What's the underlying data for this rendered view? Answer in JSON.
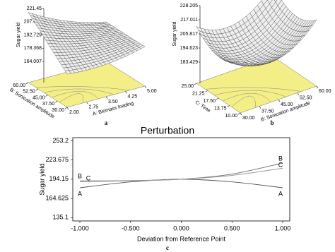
{
  "chart_data": [
    {
      "type": "surface",
      "panel": "a",
      "zlabel": "Sugar yield",
      "xlabel": "A: Biomass loading",
      "ylabel": "B: Sonication amplitude",
      "xlim": [
        2,
        5
      ],
      "xticks": [
        {
          "value": 2,
          "label": "2.00"
        },
        2.75,
        {
          "value": 3.5,
          "label": "3.50"
        },
        4.25,
        {
          "value": 5,
          "label": "5.00"
        }
      ],
      "ylim": [
        30,
        60
      ],
      "yticks": [
        {
          "value": 30,
          "label": "30.00"
        },
        {
          "value": 37.5,
          "label": "37.50"
        },
        {
          "value": 45,
          "label": "45.00"
        },
        {
          "value": 52.5,
          "label": "52.50"
        },
        {
          "value": 60,
          "label": "60.00"
        }
      ],
      "zlim": [
        164.007,
        221.45
      ],
      "zticks": [
        164.007,
        178.368,
        192.729,
        207.089,
        221.45
      ]
    },
    {
      "type": "surface",
      "panel": "b",
      "zlabel": "Sugar yield",
      "xlabel": "B: Sonication amplitude",
      "ylabel": "C: Time",
      "xlim": [
        30,
        60
      ],
      "xticks": [
        {
          "value": 30,
          "label": "30.00"
        },
        {
          "value": 37.5,
          "label": "37.50"
        },
        {
          "value": 45,
          "label": "45.00"
        },
        {
          "value": 52.5,
          "label": "52.50"
        },
        {
          "value": 60,
          "label": "60.00"
        }
      ],
      "ylim": [
        10,
        25
      ],
      "yticks": [
        {
          "value": 10,
          "label": "10.00"
        },
        13.75,
        {
          "value": 17.5,
          "label": "17.50"
        },
        21.25,
        {
          "value": 25,
          "label": "25.00"
        }
      ],
      "zlim": [
        183.429,
        228.205
      ],
      "zticks": [
        183.429,
        194.623,
        205.817,
        217.011,
        228.205
      ]
    },
    {
      "type": "line",
      "panel": "c",
      "title": "Perturbation",
      "xlabel": "Deviation from Reference Point",
      "ylabel": "Sugar yield",
      "x": [
        -1,
        -0.5,
        0,
        0.5,
        1
      ],
      "xlim": [
        -1.07,
        1.07
      ],
      "xticks": [
        {
          "value": -1,
          "label": "-1.000"
        },
        {
          "value": -0.5,
          "label": "-0.500"
        },
        {
          "value": 0,
          "label": "0.000"
        },
        {
          "value": 0.5,
          "label": "0.500"
        },
        {
          "value": 1,
          "label": "1.000"
        }
      ],
      "ylim": [
        130,
        258
      ],
      "yticks": [
        135.1,
        164.625,
        194.15,
        223.675,
        253.2
      ],
      "series": [
        {
          "name": "A",
          "color": "#555555",
          "values": [
            181,
            190,
            194.15,
            190,
            181
          ]
        },
        {
          "name": "B",
          "color": "#777777",
          "values": [
            191.5,
            192,
            194.15,
            202,
            219
          ]
        },
        {
          "name": "C",
          "color": "#999999",
          "values": [
            190.5,
            191.5,
            194.15,
            200,
            211
          ]
        }
      ]
    }
  ]
}
